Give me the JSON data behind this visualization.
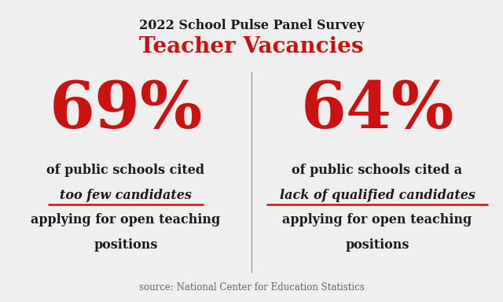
{
  "background_color": "#efefef",
  "title_line1": "2022 School Pulse Panel Survey",
  "title_line2": "Teacher Vacancies",
  "title_line1_color": "#1a1a1a",
  "title_line2_color": "#cc1111",
  "title_line1_fontsize": 11.5,
  "title_line2_fontsize": 20,
  "left_percent": "69%",
  "right_percent": "64%",
  "percent_color": "#cc1111",
  "percent_fontsize": 60,
  "left_text_line1": "of public schools cited",
  "left_text_italic": "too few candidates",
  "left_text_line3": "applying for open teaching",
  "left_text_line4": "positions",
  "right_text_line1": "of public schools cited a",
  "right_text_italic": "lack of qualified candidates",
  "right_text_line3": "applying for open teaching",
  "right_text_line4": "positions",
  "body_text_color": "#1a1a1a",
  "body_fontsize": 11.5,
  "italic_fontsize": 11.5,
  "underline_color": "#cc1111",
  "divider_color": "#888888",
  "source_text": "source: National Center for Education Statistics",
  "source_color": "#666666",
  "source_fontsize": 8.5
}
